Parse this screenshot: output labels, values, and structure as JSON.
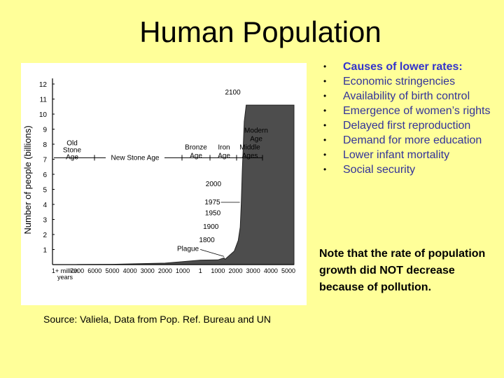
{
  "slide": {
    "title": "Human Population",
    "source": "Source: Valiela, Data from Pop. Ref. Bureau and UN",
    "note": "Note that the rate of population growth did NOT decrease because of pollution."
  },
  "bullets": [
    "Causes of lower rates:",
    "Economic stringencies",
    "Availability of birth control",
    "Emergence of women’s rights",
    "Delayed first reproduction",
    "Demand for more education",
    "Lower infant mortality",
    "Social security"
  ],
  "chart_data": {
    "type": "area",
    "ylabel": "Number of people (billions)",
    "ylim": [
      0,
      12
    ],
    "yticks": [
      "1",
      "2",
      "3",
      "4",
      "5",
      "6",
      "7",
      "8",
      "9",
      "10",
      "11",
      "12"
    ],
    "xticks": [
      "1+ million years",
      "7000",
      "6000",
      "5000",
      "4000",
      "3000",
      "2000",
      "1000",
      "1",
      "1000",
      "2000",
      "3000",
      "4000",
      "5000"
    ],
    "eras": [
      "Old Stone Age",
      "New Stone Age",
      "Bronze Age",
      "Iron Age",
      "Middle Ages",
      "Modern Age"
    ],
    "annotations": [
      "2100",
      "2000",
      "1975",
      "1950",
      "1900",
      "1800",
      "Plague"
    ],
    "series": [
      {
        "points": [
          {
            "year": -10000,
            "pop": 0.005
          },
          {
            "year": -5000,
            "pop": 0.02
          },
          {
            "year": -2000,
            "pop": 0.1
          },
          {
            "year": 1,
            "pop": 0.3
          },
          {
            "year": 1000,
            "pop": 0.31
          },
          {
            "year": 1348,
            "pop": 0.45
          },
          {
            "year": 1400,
            "pop": 0.35
          },
          {
            "year": 1800,
            "pop": 0.9
          },
          {
            "year": 1900,
            "pop": 1.6
          },
          {
            "year": 1950,
            "pop": 2.5
          },
          {
            "year": 1975,
            "pop": 4.0
          },
          {
            "year": 2000,
            "pop": 6.1
          },
          {
            "year": 2050,
            "pop": 9.5
          },
          {
            "year": 2100,
            "pop": 10.6
          },
          {
            "year": 5000,
            "pop": 10.6
          }
        ]
      }
    ],
    "fill_color": "#4d4d4d"
  }
}
